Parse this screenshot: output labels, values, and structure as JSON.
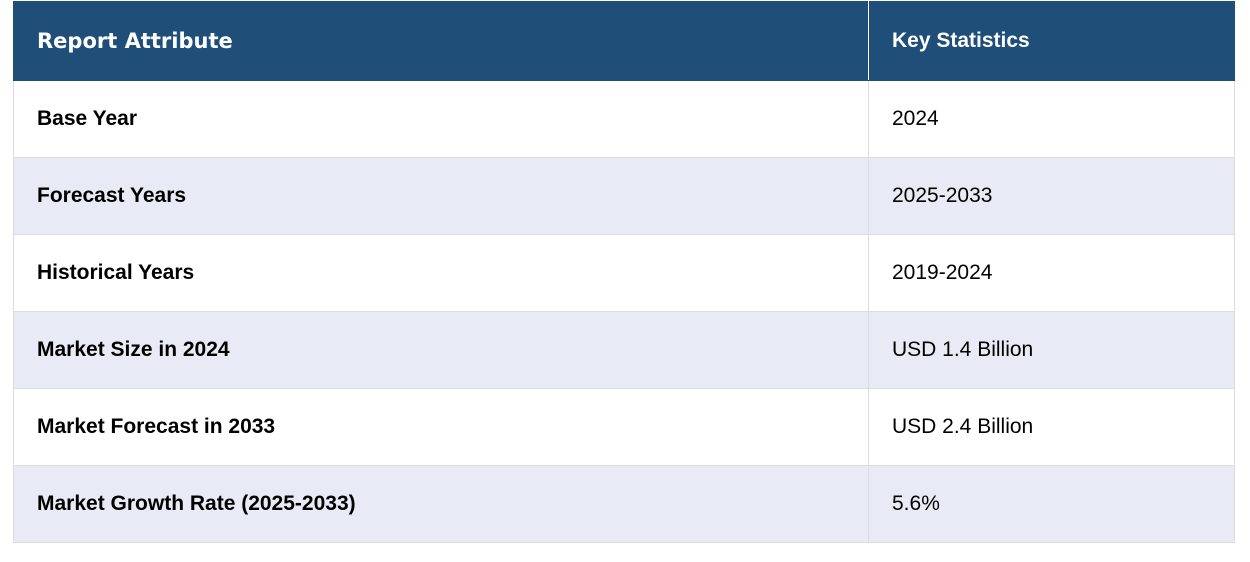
{
  "table": {
    "header": [
      "Report Attribute",
      "Key Statistics"
    ],
    "rows": [
      [
        "Base Year",
        "2024"
      ],
      [
        "Forecast Years",
        "2025-2033"
      ],
      [
        "Historical Years",
        "2019-2024"
      ],
      [
        "Market Size in 2024",
        "USD 1.4 Billion"
      ],
      [
        "Market Forecast in 2033",
        "USD 2.4 Billion"
      ],
      [
        "Market Growth Rate (2025-2033)",
        "5.6%"
      ]
    ]
  }
}
